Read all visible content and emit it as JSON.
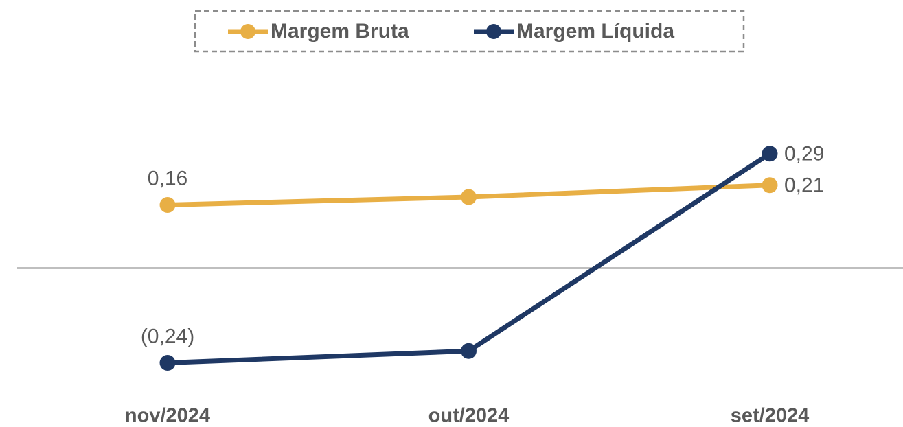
{
  "chart_data": {
    "type": "line",
    "categories": [
      "nov/2024",
      "out/2024",
      "set/2024"
    ],
    "series": [
      {
        "name": "Margem Bruta",
        "color": "#E8AF45",
        "values": [
          0.16,
          0.18,
          0.21
        ],
        "value_labels": [
          "0,16",
          null,
          "0,21"
        ]
      },
      {
        "name": "Margem Líquida",
        "color": "#1F3864",
        "values": [
          -0.24,
          -0.21,
          0.29
        ],
        "value_labels": [
          "(0,24)",
          null,
          "0,29"
        ]
      }
    ],
    "ylim": [
      -0.36,
      0.54
    ],
    "grid": false,
    "legend": "top"
  }
}
